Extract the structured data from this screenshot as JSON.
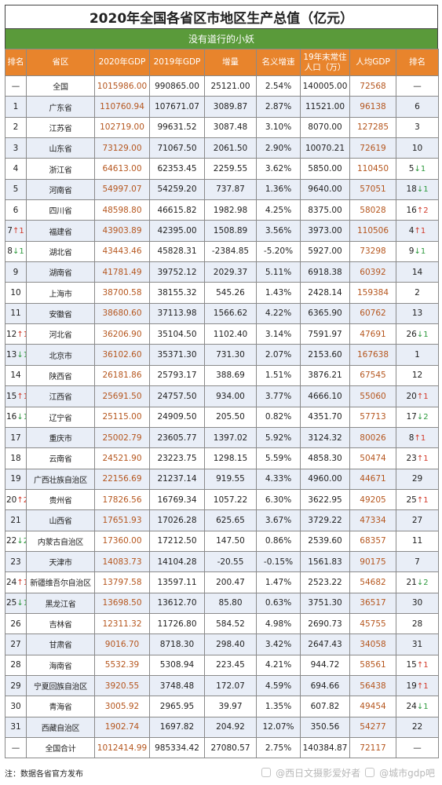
{
  "title": "2020年全国各省区市地区生产总值（亿元）",
  "banner": "没有道行的小妖",
  "headers": [
    "排名",
    "省区",
    "2020年GDP",
    "2019年GDP",
    "增量",
    "名义增速",
    "19年末常住人口（万）",
    "人均GDP",
    "排名"
  ],
  "rows": [
    {
      "rank": "—",
      "rank_arrow": "",
      "rank_arrow_dir": "",
      "region": "全国",
      "gdp2020": "1015986.00",
      "gdp2019": "990865.00",
      "increase": "25121.00",
      "growth": "2.54%",
      "population": "140005.00",
      "per_capita": "72568",
      "pc_rank": "—",
      "pc_arrow": "",
      "pc_arrow_dir": ""
    },
    {
      "rank": "1",
      "rank_arrow": "",
      "rank_arrow_dir": "",
      "region": "广东省",
      "gdp2020": "110760.94",
      "gdp2019": "107671.07",
      "increase": "3089.87",
      "growth": "2.87%",
      "population": "11521.00",
      "per_capita": "96138",
      "pc_rank": "6",
      "pc_arrow": "",
      "pc_arrow_dir": ""
    },
    {
      "rank": "2",
      "rank_arrow": "",
      "rank_arrow_dir": "",
      "region": "江苏省",
      "gdp2020": "102719.00",
      "gdp2019": "99631.52",
      "increase": "3087.48",
      "growth": "3.10%",
      "population": "8070.00",
      "per_capita": "127285",
      "pc_rank": "3",
      "pc_arrow": "",
      "pc_arrow_dir": ""
    },
    {
      "rank": "3",
      "rank_arrow": "",
      "rank_arrow_dir": "",
      "region": "山东省",
      "gdp2020": "73129.00",
      "gdp2019": "71067.50",
      "increase": "2061.50",
      "growth": "2.90%",
      "population": "10070.21",
      "per_capita": "72619",
      "pc_rank": "10",
      "pc_arrow": "",
      "pc_arrow_dir": ""
    },
    {
      "rank": "4",
      "rank_arrow": "",
      "rank_arrow_dir": "",
      "region": "浙江省",
      "gdp2020": "64613.00",
      "gdp2019": "62353.45",
      "increase": "2259.55",
      "growth": "3.62%",
      "population": "5850.00",
      "per_capita": "110450",
      "pc_rank": "5",
      "pc_arrow": "↓1",
      "pc_arrow_dir": "down"
    },
    {
      "rank": "5",
      "rank_arrow": "",
      "rank_arrow_dir": "",
      "region": "河南省",
      "gdp2020": "54997.07",
      "gdp2019": "54259.20",
      "increase": "737.87",
      "growth": "1.36%",
      "population": "9640.00",
      "per_capita": "57051",
      "pc_rank": "18",
      "pc_arrow": "↓1",
      "pc_arrow_dir": "down"
    },
    {
      "rank": "6",
      "rank_arrow": "",
      "rank_arrow_dir": "",
      "region": "四川省",
      "gdp2020": "48598.80",
      "gdp2019": "46615.82",
      "increase": "1982.98",
      "growth": "4.25%",
      "population": "8375.00",
      "per_capita": "58028",
      "pc_rank": "16",
      "pc_arrow": "↑2",
      "pc_arrow_dir": "up"
    },
    {
      "rank": "7",
      "rank_arrow": "↑1",
      "rank_arrow_dir": "up",
      "region": "福建省",
      "gdp2020": "43903.89",
      "gdp2019": "42395.00",
      "increase": "1508.89",
      "growth": "3.56%",
      "population": "3973.00",
      "per_capita": "110506",
      "pc_rank": "4",
      "pc_arrow": "↑1",
      "pc_arrow_dir": "up"
    },
    {
      "rank": "8",
      "rank_arrow": "↓1",
      "rank_arrow_dir": "down",
      "region": "湖北省",
      "gdp2020": "43443.46",
      "gdp2019": "45828.31",
      "increase": "-2384.85",
      "growth": "-5.20%",
      "population": "5927.00",
      "per_capita": "73298",
      "pc_rank": "9",
      "pc_arrow": "↓1",
      "pc_arrow_dir": "down"
    },
    {
      "rank": "9",
      "rank_arrow": "",
      "rank_arrow_dir": "",
      "region": "湖南省",
      "gdp2020": "41781.49",
      "gdp2019": "39752.12",
      "increase": "2029.37",
      "growth": "5.11%",
      "population": "6918.38",
      "per_capita": "60392",
      "pc_rank": "14",
      "pc_arrow": "",
      "pc_arrow_dir": ""
    },
    {
      "rank": "10",
      "rank_arrow": "",
      "rank_arrow_dir": "",
      "region": "上海市",
      "gdp2020": "38700.58",
      "gdp2019": "38155.32",
      "increase": "545.26",
      "growth": "1.43%",
      "population": "2428.14",
      "per_capita": "159384",
      "pc_rank": "2",
      "pc_arrow": "",
      "pc_arrow_dir": ""
    },
    {
      "rank": "11",
      "rank_arrow": "",
      "rank_arrow_dir": "",
      "region": "安徽省",
      "gdp2020": "38680.60",
      "gdp2019": "37113.98",
      "increase": "1566.62",
      "growth": "4.22%",
      "population": "6365.90",
      "per_capita": "60762",
      "pc_rank": "13",
      "pc_arrow": "",
      "pc_arrow_dir": ""
    },
    {
      "rank": "12",
      "rank_arrow": "↑1",
      "rank_arrow_dir": "up",
      "region": "河北省",
      "gdp2020": "36206.90",
      "gdp2019": "35104.50",
      "increase": "1102.40",
      "growth": "3.14%",
      "population": "7591.97",
      "per_capita": "47691",
      "pc_rank": "26",
      "pc_arrow": "↓1",
      "pc_arrow_dir": "down"
    },
    {
      "rank": "13",
      "rank_arrow": "↓1",
      "rank_arrow_dir": "down",
      "region": "北京市",
      "gdp2020": "36102.60",
      "gdp2019": "35371.30",
      "increase": "731.30",
      "growth": "2.07%",
      "population": "2153.60",
      "per_capita": "167638",
      "pc_rank": "1",
      "pc_arrow": "",
      "pc_arrow_dir": ""
    },
    {
      "rank": "14",
      "rank_arrow": "",
      "rank_arrow_dir": "",
      "region": "陕西省",
      "gdp2020": "26181.86",
      "gdp2019": "25793.17",
      "increase": "388.69",
      "growth": "1.51%",
      "population": "3876.21",
      "per_capita": "67545",
      "pc_rank": "12",
      "pc_arrow": "",
      "pc_arrow_dir": ""
    },
    {
      "rank": "15",
      "rank_arrow": "↑1",
      "rank_arrow_dir": "up",
      "region": "江西省",
      "gdp2020": "25691.50",
      "gdp2019": "24757.50",
      "increase": "934.00",
      "growth": "3.77%",
      "population": "4666.10",
      "per_capita": "55060",
      "pc_rank": "20",
      "pc_arrow": "↑1",
      "pc_arrow_dir": "up"
    },
    {
      "rank": "16",
      "rank_arrow": "↓1",
      "rank_arrow_dir": "down",
      "region": "辽宁省",
      "gdp2020": "25115.00",
      "gdp2019": "24909.50",
      "increase": "205.50",
      "growth": "0.82%",
      "population": "4351.70",
      "per_capita": "57713",
      "pc_rank": "17",
      "pc_arrow": "↓2",
      "pc_arrow_dir": "down"
    },
    {
      "rank": "17",
      "rank_arrow": "",
      "rank_arrow_dir": "",
      "region": "重庆市",
      "gdp2020": "25002.79",
      "gdp2019": "23605.77",
      "increase": "1397.02",
      "growth": "5.92%",
      "population": "3124.32",
      "per_capita": "80026",
      "pc_rank": "8",
      "pc_arrow": "↑1",
      "pc_arrow_dir": "up"
    },
    {
      "rank": "18",
      "rank_arrow": "",
      "rank_arrow_dir": "",
      "region": "云南省",
      "gdp2020": "24521.90",
      "gdp2019": "23223.75",
      "increase": "1298.15",
      "growth": "5.59%",
      "population": "4858.30",
      "per_capita": "50474",
      "pc_rank": "23",
      "pc_arrow": "↑1",
      "pc_arrow_dir": "up"
    },
    {
      "rank": "19",
      "rank_arrow": "",
      "rank_arrow_dir": "",
      "region": "广西壮族自治区",
      "gdp2020": "22156.69",
      "gdp2019": "21237.14",
      "increase": "919.55",
      "growth": "4.33%",
      "population": "4960.00",
      "per_capita": "44671",
      "pc_rank": "29",
      "pc_arrow": "",
      "pc_arrow_dir": ""
    },
    {
      "rank": "20",
      "rank_arrow": "↑2",
      "rank_arrow_dir": "up",
      "region": "贵州省",
      "gdp2020": "17826.56",
      "gdp2019": "16769.34",
      "increase": "1057.22",
      "growth": "6.30%",
      "population": "3622.95",
      "per_capita": "49205",
      "pc_rank": "25",
      "pc_arrow": "↑1",
      "pc_arrow_dir": "up"
    },
    {
      "rank": "21",
      "rank_arrow": "",
      "rank_arrow_dir": "",
      "region": "山西省",
      "gdp2020": "17651.93",
      "gdp2019": "17026.28",
      "increase": "625.65",
      "growth": "3.67%",
      "population": "3729.22",
      "per_capita": "47334",
      "pc_rank": "27",
      "pc_arrow": "",
      "pc_arrow_dir": ""
    },
    {
      "rank": "22",
      "rank_arrow": "↓2",
      "rank_arrow_dir": "down",
      "region": "内蒙古自治区",
      "gdp2020": "17360.00",
      "gdp2019": "17212.50",
      "increase": "147.50",
      "growth": "0.86%",
      "population": "2539.60",
      "per_capita": "68357",
      "pc_rank": "11",
      "pc_arrow": "",
      "pc_arrow_dir": ""
    },
    {
      "rank": "23",
      "rank_arrow": "",
      "rank_arrow_dir": "",
      "region": "天津市",
      "gdp2020": "14083.73",
      "gdp2019": "14104.28",
      "increase": "-20.55",
      "growth": "-0.15%",
      "population": "1561.83",
      "per_capita": "90175",
      "pc_rank": "7",
      "pc_arrow": "",
      "pc_arrow_dir": ""
    },
    {
      "rank": "24",
      "rank_arrow": "↑1",
      "rank_arrow_dir": "up",
      "region": "新疆维吾尔自治区",
      "gdp2020": "13797.58",
      "gdp2019": "13597.11",
      "increase": "200.47",
      "growth": "1.47%",
      "population": "2523.22",
      "per_capita": "54682",
      "pc_rank": "21",
      "pc_arrow": "↓2",
      "pc_arrow_dir": "down"
    },
    {
      "rank": "25",
      "rank_arrow": "↓1",
      "rank_arrow_dir": "down",
      "region": "黑龙江省",
      "gdp2020": "13698.50",
      "gdp2019": "13612.70",
      "increase": "85.80",
      "growth": "0.63%",
      "population": "3751.30",
      "per_capita": "36517",
      "pc_rank": "30",
      "pc_arrow": "",
      "pc_arrow_dir": ""
    },
    {
      "rank": "26",
      "rank_arrow": "",
      "rank_arrow_dir": "",
      "region": "吉林省",
      "gdp2020": "12311.32",
      "gdp2019": "11726.80",
      "increase": "584.52",
      "growth": "4.98%",
      "population": "2690.73",
      "per_capita": "45755",
      "pc_rank": "28",
      "pc_arrow": "",
      "pc_arrow_dir": ""
    },
    {
      "rank": "27",
      "rank_arrow": "",
      "rank_arrow_dir": "",
      "region": "甘肃省",
      "gdp2020": "9016.70",
      "gdp2019": "8718.30",
      "increase": "298.40",
      "growth": "3.42%",
      "population": "2647.43",
      "per_capita": "34058",
      "pc_rank": "31",
      "pc_arrow": "",
      "pc_arrow_dir": ""
    },
    {
      "rank": "28",
      "rank_arrow": "",
      "rank_arrow_dir": "",
      "region": "海南省",
      "gdp2020": "5532.39",
      "gdp2019": "5308.94",
      "increase": "223.45",
      "growth": "4.21%",
      "population": "944.72",
      "per_capita": "58561",
      "pc_rank": "15",
      "pc_arrow": "↑1",
      "pc_arrow_dir": "up"
    },
    {
      "rank": "29",
      "rank_arrow": "",
      "rank_arrow_dir": "",
      "region": "宁夏回族自治区",
      "gdp2020": "3920.55",
      "gdp2019": "3748.48",
      "increase": "172.07",
      "growth": "4.59%",
      "population": "694.66",
      "per_capita": "56438",
      "pc_rank": "19",
      "pc_arrow": "↑1",
      "pc_arrow_dir": "up"
    },
    {
      "rank": "30",
      "rank_arrow": "",
      "rank_arrow_dir": "",
      "region": "青海省",
      "gdp2020": "3005.92",
      "gdp2019": "2965.95",
      "increase": "39.97",
      "growth": "1.35%",
      "population": "607.82",
      "per_capita": "49454",
      "pc_rank": "24",
      "pc_arrow": "↓1",
      "pc_arrow_dir": "down"
    },
    {
      "rank": "31",
      "rank_arrow": "",
      "rank_arrow_dir": "",
      "region": "西藏自治区",
      "gdp2020": "1902.74",
      "gdp2019": "1697.82",
      "increase": "204.92",
      "growth": "12.07%",
      "population": "350.56",
      "per_capita": "54277",
      "pc_rank": "22",
      "pc_arrow": "",
      "pc_arrow_dir": ""
    },
    {
      "rank": "—",
      "rank_arrow": "",
      "rank_arrow_dir": "",
      "region": "全国合计",
      "gdp2020": "1012414.99",
      "gdp2019": "985334.42",
      "increase": "27080.57",
      "growth": "2.75%",
      "population": "140384.87",
      "per_capita": "72117",
      "pc_rank": "—",
      "pc_arrow": "",
      "pc_arrow_dir": ""
    }
  ],
  "footer_note": "注：数据各省官方发布",
  "watermark": {
    "left": "@西日文摄影爱好者",
    "right": "@城市gdp吧"
  },
  "colors": {
    "header_bg": "#e8842c",
    "banner_bg": "#5a9a3a",
    "gdp2020_text": "#b5561e",
    "per_capita_text": "#b5561e",
    "arrow_up": "#d23a2a",
    "arrow_down": "#2e9a3e",
    "row_stripe": "#e9eef7"
  }
}
